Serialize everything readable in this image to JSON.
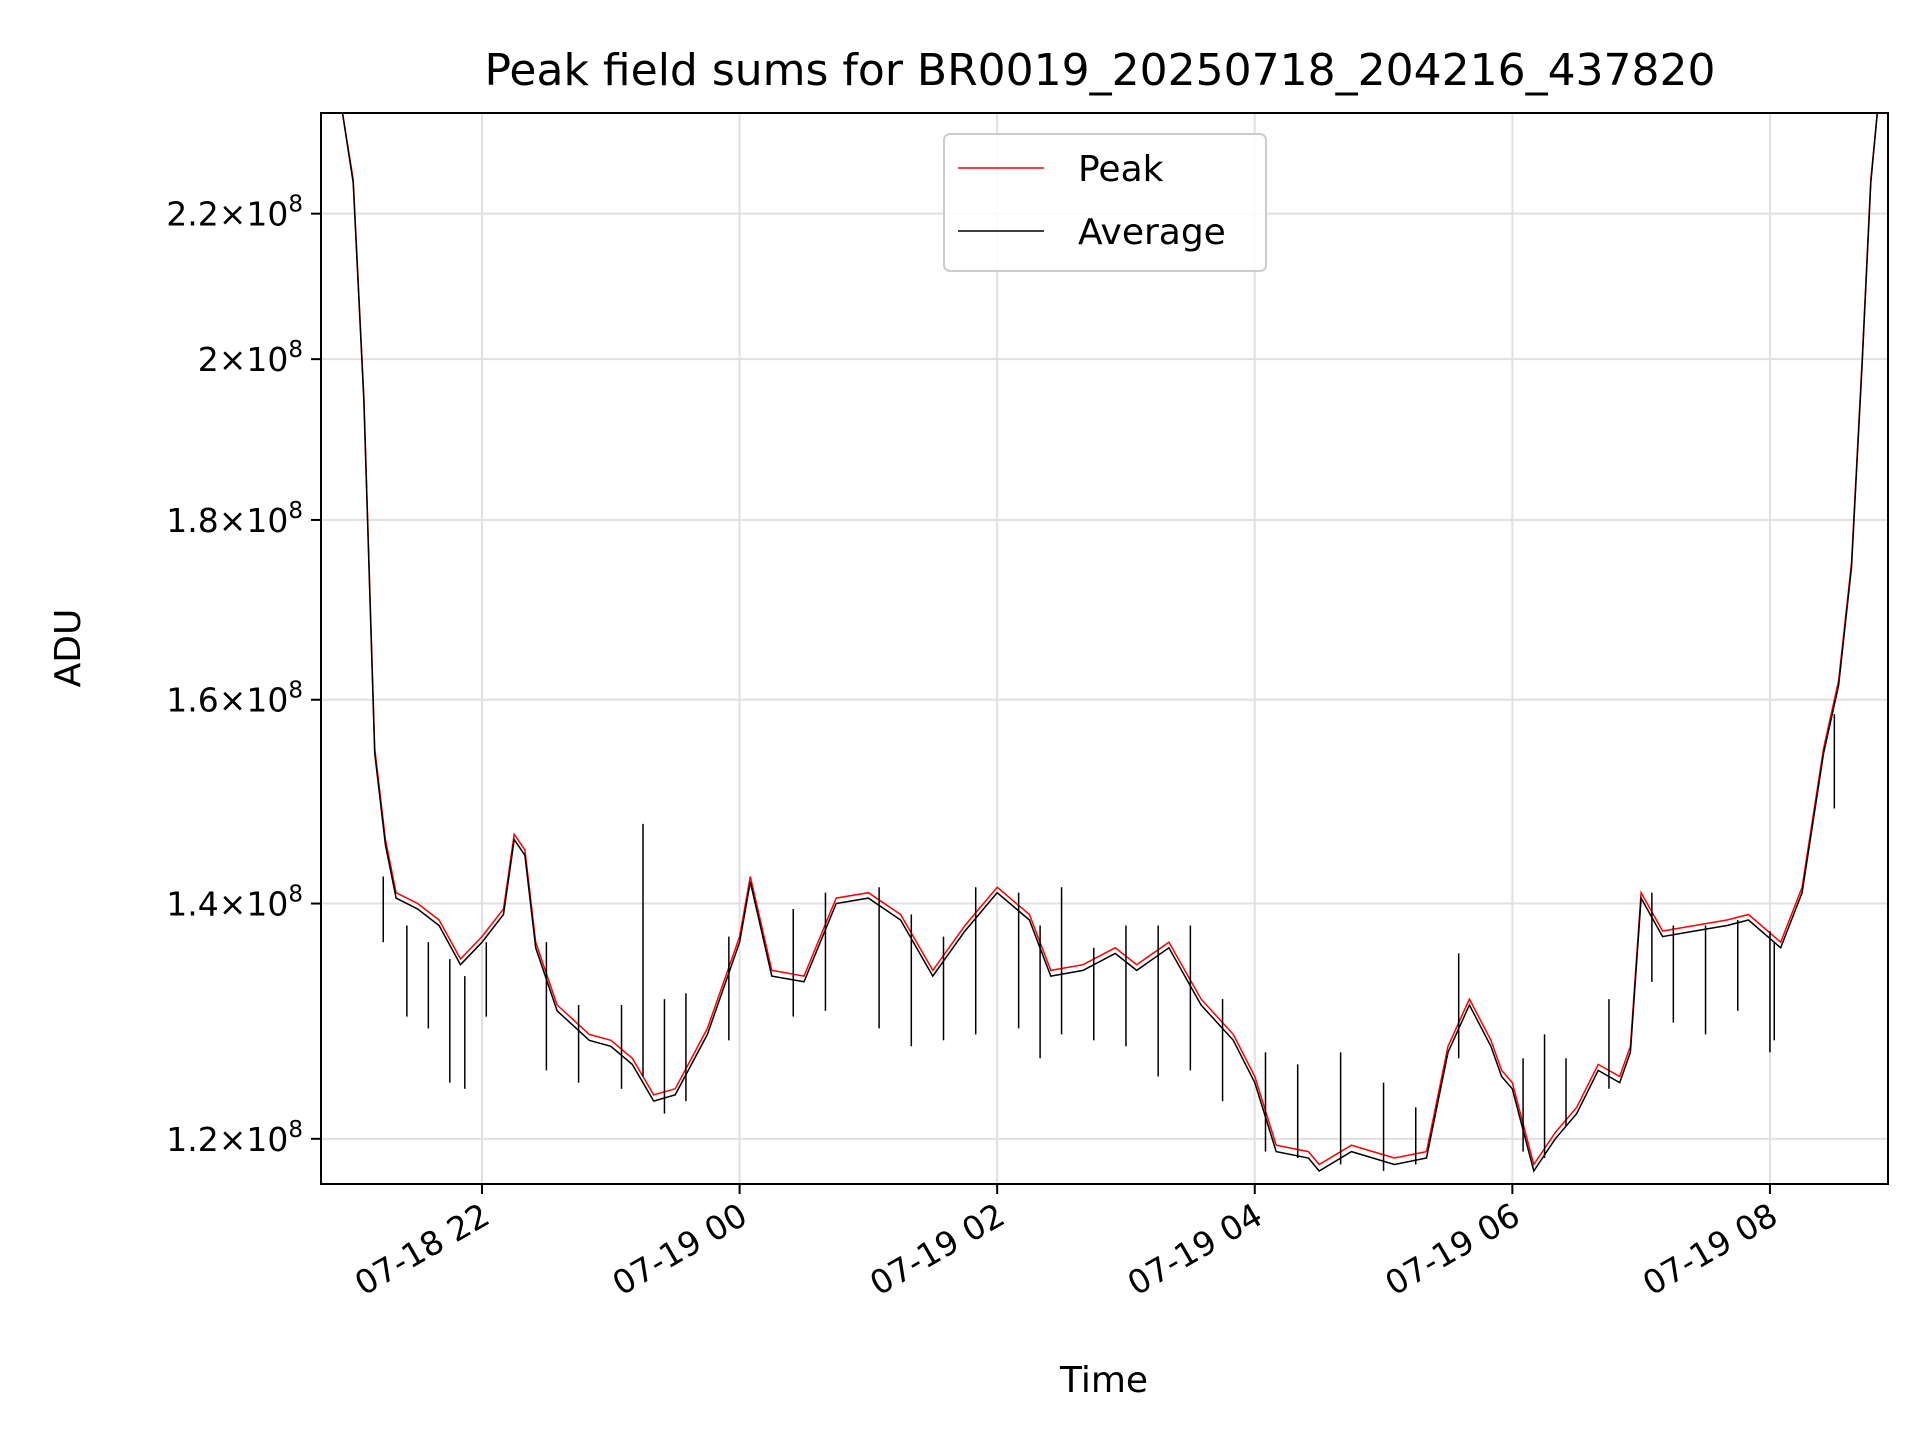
{
  "chart_data": {
    "type": "line",
    "title": "Peak field sums for BR0019_20250718_204216_437820",
    "xlabel": "Time",
    "ylabel": "ADU",
    "y_scale": "log",
    "x_range": [
      "2025-07-18 20:45",
      "2025-07-19 08:55"
    ],
    "ylim": [
      116500000,
      235000000
    ],
    "x_ticks": [
      "2025-07-18 22:00",
      "2025-07-19 00:00",
      "2025-07-19 02:00",
      "2025-07-19 04:00",
      "2025-07-19 06:00",
      "2025-07-19 08:00"
    ],
    "x_tick_labels": [
      "07-18 22",
      "07-19 00",
      "07-19 02",
      "07-19 04",
      "07-19 06",
      "07-19 08"
    ],
    "y_ticks": [
      120000000,
      140000000,
      160000000,
      180000000,
      200000000,
      220000000
    ],
    "y_tick_labels": [
      {
        "mant": "1.2",
        "exp": "8"
      },
      {
        "mant": "1.4",
        "exp": "8"
      },
      {
        "mant": "1.6",
        "exp": "8"
      },
      {
        "mant": "1.8",
        "exp": "8"
      },
      {
        "mant": "2",
        "exp": "8"
      },
      {
        "mant": "2.2",
        "exp": "8"
      }
    ],
    "grid": true,
    "legend_position": "top-center",
    "series": [
      {
        "name": "Peak",
        "color": "#ff0000",
        "points": [
          [
            "2025-07-18 20:45",
            235000000
          ],
          [
            "2025-07-18 20:55",
            235000000
          ],
          [
            "2025-07-18 21:00",
            225000000
          ],
          [
            "2025-07-18 21:05",
            195000000
          ],
          [
            "2025-07-18 21:10",
            155000000
          ],
          [
            "2025-07-18 21:15",
            146000000
          ],
          [
            "2025-07-18 21:20",
            141000000
          ],
          [
            "2025-07-18 21:30",
            140000000
          ],
          [
            "2025-07-18 21:40",
            138500000
          ],
          [
            "2025-07-18 21:50",
            135000000
          ],
          [
            "2025-07-18 22:00",
            137000000
          ],
          [
            "2025-07-18 22:10",
            139500000
          ],
          [
            "2025-07-18 22:15",
            146500000
          ],
          [
            "2025-07-18 22:20",
            145000000
          ],
          [
            "2025-07-18 22:25",
            136500000
          ],
          [
            "2025-07-18 22:35",
            131000000
          ],
          [
            "2025-07-18 22:50",
            128500000
          ],
          [
            "2025-07-18 23:00",
            128000000
          ],
          [
            "2025-07-18 23:10",
            126500000
          ],
          [
            "2025-07-18 23:20",
            123500000
          ],
          [
            "2025-07-18 23:30",
            124000000
          ],
          [
            "2025-07-18 23:45",
            129000000
          ],
          [
            "2025-07-19 00:00",
            137000000
          ],
          [
            "2025-07-19 00:05",
            142500000
          ],
          [
            "2025-07-19 00:15",
            134000000
          ],
          [
            "2025-07-19 00:30",
            133500000
          ],
          [
            "2025-07-19 00:45",
            140500000
          ],
          [
            "2025-07-19 01:00",
            141000000
          ],
          [
            "2025-07-19 01:15",
            139000000
          ],
          [
            "2025-07-19 01:30",
            134000000
          ],
          [
            "2025-07-19 01:45",
            138000000
          ],
          [
            "2025-07-19 02:00",
            141500000
          ],
          [
            "2025-07-19 02:15",
            139000000
          ],
          [
            "2025-07-19 02:25",
            134000000
          ],
          [
            "2025-07-19 02:40",
            134500000
          ],
          [
            "2025-07-19 02:55",
            136000000
          ],
          [
            "2025-07-19 03:05",
            134500000
          ],
          [
            "2025-07-19 03:20",
            136500000
          ],
          [
            "2025-07-19 03:35",
            131500000
          ],
          [
            "2025-07-19 03:50",
            128500000
          ],
          [
            "2025-07-19 04:00",
            125000000
          ],
          [
            "2025-07-19 04:10",
            119500000
          ],
          [
            "2025-07-19 04:25",
            119000000
          ],
          [
            "2025-07-19 04:30",
            118000000
          ],
          [
            "2025-07-19 04:45",
            119500000
          ],
          [
            "2025-07-19 04:55",
            119000000
          ],
          [
            "2025-07-19 05:05",
            118500000
          ],
          [
            "2025-07-19 05:20",
            119000000
          ],
          [
            "2025-07-19 05:30",
            127500000
          ],
          [
            "2025-07-19 05:40",
            131500000
          ],
          [
            "2025-07-19 05:50",
            128000000
          ],
          [
            "2025-07-19 05:55",
            125500000
          ],
          [
            "2025-07-19 06:00",
            124500000
          ],
          [
            "2025-07-19 06:10",
            118000000
          ],
          [
            "2025-07-19 06:20",
            120500000
          ],
          [
            "2025-07-19 06:30",
            122500000
          ],
          [
            "2025-07-19 06:40",
            126000000
          ],
          [
            "2025-07-19 06:50",
            125000000
          ],
          [
            "2025-07-19 06:55",
            127500000
          ],
          [
            "2025-07-19 07:00",
            141000000
          ],
          [
            "2025-07-19 07:10",
            137500000
          ],
          [
            "2025-07-19 07:25",
            138000000
          ],
          [
            "2025-07-19 07:40",
            138500000
          ],
          [
            "2025-07-19 07:50",
            139000000
          ],
          [
            "2025-07-19 08:05",
            136500000
          ],
          [
            "2025-07-19 08:15",
            141500000
          ],
          [
            "2025-07-19 08:25",
            155000000
          ],
          [
            "2025-07-19 08:32",
            162000000
          ],
          [
            "2025-07-19 08:38",
            175000000
          ],
          [
            "2025-07-19 08:43",
            200000000
          ],
          [
            "2025-07-19 08:47",
            225000000
          ],
          [
            "2025-07-19 08:50",
            235000000
          ],
          [
            "2025-07-19 08:55",
            235000000
          ]
        ]
      },
      {
        "name": "Average",
        "color": "#000000",
        "points": [
          [
            "2025-07-18 20:45",
            235000000
          ],
          [
            "2025-07-18 20:55",
            235000000
          ],
          [
            "2025-07-18 21:00",
            224500000
          ],
          [
            "2025-07-18 21:05",
            194500000
          ],
          [
            "2025-07-18 21:10",
            154500000
          ],
          [
            "2025-07-18 21:15",
            145500000
          ],
          [
            "2025-07-18 21:20",
            140500000
          ],
          [
            "2025-07-18 21:30",
            139500000
          ],
          [
            "2025-07-18 21:40",
            138000000
          ],
          [
            "2025-07-18 21:50",
            134500000
          ],
          [
            "2025-07-18 22:00",
            136500000
          ],
          [
            "2025-07-18 22:10",
            139000000
          ],
          [
            "2025-07-18 22:15",
            146000000
          ],
          [
            "2025-07-18 22:20",
            144500000
          ],
          [
            "2025-07-18 22:25",
            136000000
          ],
          [
            "2025-07-18 22:35",
            130500000
          ],
          [
            "2025-07-18 22:50",
            128000000
          ],
          [
            "2025-07-18 23:00",
            127500000
          ],
          [
            "2025-07-18 23:10",
            126000000
          ],
          [
            "2025-07-18 23:20",
            123000000
          ],
          [
            "2025-07-18 23:30",
            123500000
          ],
          [
            "2025-07-18 23:45",
            128500000
          ],
          [
            "2025-07-19 00:00",
            136500000
          ],
          [
            "2025-07-19 00:05",
            142000000
          ],
          [
            "2025-07-19 00:15",
            133500000
          ],
          [
            "2025-07-19 00:30",
            133000000
          ],
          [
            "2025-07-19 00:45",
            140000000
          ],
          [
            "2025-07-19 01:00",
            140500000
          ],
          [
            "2025-07-19 01:15",
            138500000
          ],
          [
            "2025-07-19 01:30",
            133500000
          ],
          [
            "2025-07-19 01:45",
            137500000
          ],
          [
            "2025-07-19 02:00",
            141000000
          ],
          [
            "2025-07-19 02:15",
            138500000
          ],
          [
            "2025-07-19 02:25",
            133500000
          ],
          [
            "2025-07-19 02:40",
            134000000
          ],
          [
            "2025-07-19 02:55",
            135500000
          ],
          [
            "2025-07-19 03:05",
            134000000
          ],
          [
            "2025-07-19 03:20",
            136000000
          ],
          [
            "2025-07-19 03:35",
            131000000
          ],
          [
            "2025-07-19 03:50",
            128000000
          ],
          [
            "2025-07-19 04:00",
            124500000
          ],
          [
            "2025-07-19 04:10",
            119000000
          ],
          [
            "2025-07-19 04:25",
            118500000
          ],
          [
            "2025-07-19 04:30",
            117500000
          ],
          [
            "2025-07-19 04:45",
            119000000
          ],
          [
            "2025-07-19 04:55",
            118500000
          ],
          [
            "2025-07-19 05:05",
            118000000
          ],
          [
            "2025-07-19 05:20",
            118500000
          ],
          [
            "2025-07-19 05:30",
            127000000
          ],
          [
            "2025-07-19 05:40",
            131000000
          ],
          [
            "2025-07-19 05:50",
            127500000
          ],
          [
            "2025-07-19 05:55",
            125000000
          ],
          [
            "2025-07-19 06:00",
            124000000
          ],
          [
            "2025-07-19 06:10",
            117500000
          ],
          [
            "2025-07-19 06:20",
            120000000
          ],
          [
            "2025-07-19 06:30",
            122000000
          ],
          [
            "2025-07-19 06:40",
            125500000
          ],
          [
            "2025-07-19 06:50",
            124500000
          ],
          [
            "2025-07-19 06:55",
            127000000
          ],
          [
            "2025-07-19 07:00",
            140500000
          ],
          [
            "2025-07-19 07:10",
            137000000
          ],
          [
            "2025-07-19 07:25",
            137500000
          ],
          [
            "2025-07-19 07:40",
            138000000
          ],
          [
            "2025-07-19 07:50",
            138500000
          ],
          [
            "2025-07-19 08:05",
            136000000
          ],
          [
            "2025-07-19 08:15",
            141000000
          ],
          [
            "2025-07-19 08:25",
            154500000
          ],
          [
            "2025-07-19 08:32",
            161500000
          ],
          [
            "2025-07-19 08:38",
            174500000
          ],
          [
            "2025-07-19 08:43",
            199500000
          ],
          [
            "2025-07-19 08:47",
            224500000
          ],
          [
            "2025-07-19 08:50",
            235000000
          ],
          [
            "2025-07-19 08:55",
            235000000
          ]
        ]
      }
    ],
    "spikes": [
      [
        "2025-07-18 21:14",
        136500000,
        142500000
      ],
      [
        "2025-07-18 21:25",
        130000000,
        138000000
      ],
      [
        "2025-07-18 21:35",
        129000000,
        136500000
      ],
      [
        "2025-07-18 21:45",
        124500000,
        135000000
      ],
      [
        "2025-07-18 21:52",
        124000000,
        133500000
      ],
      [
        "2025-07-18 22:02",
        130000000,
        136500000
      ],
      [
        "2025-07-18 22:30",
        125500000,
        136500000
      ],
      [
        "2025-07-18 22:45",
        124500000,
        131000000
      ],
      [
        "2025-07-18 23:05",
        124000000,
        131000000
      ],
      [
        "2025-07-18 23:15",
        125000000,
        147500000
      ],
      [
        "2025-07-18 23:25",
        122000000,
        131500000
      ],
      [
        "2025-07-18 23:35",
        123000000,
        132000000
      ],
      [
        "2025-07-18 23:55",
        128000000,
        137000000
      ],
      [
        "2025-07-19 00:25",
        130000000,
        139500000
      ],
      [
        "2025-07-19 00:40",
        130500000,
        141000000
      ],
      [
        "2025-07-19 01:05",
        129000000,
        141500000
      ],
      [
        "2025-07-19 01:20",
        127500000,
        139000000
      ],
      [
        "2025-07-19 01:35",
        128000000,
        137000000
      ],
      [
        "2025-07-19 01:50",
        128500000,
        141500000
      ],
      [
        "2025-07-19 02:10",
        129000000,
        141000000
      ],
      [
        "2025-07-19 02:20",
        126500000,
        138000000
      ],
      [
        "2025-07-19 02:30",
        128500000,
        141500000
      ],
      [
        "2025-07-19 02:45",
        128000000,
        136000000
      ],
      [
        "2025-07-19 03:00",
        127500000,
        138000000
      ],
      [
        "2025-07-19 03:15",
        125000000,
        138000000
      ],
      [
        "2025-07-19 03:30",
        125500000,
        138000000
      ],
      [
        "2025-07-19 03:45",
        123000000,
        131500000
      ],
      [
        "2025-07-19 04:05",
        119000000,
        127000000
      ],
      [
        "2025-07-19 04:20",
        118500000,
        126000000
      ],
      [
        "2025-07-19 04:40",
        118000000,
        127000000
      ],
      [
        "2025-07-19 05:00",
        117500000,
        124500000
      ],
      [
        "2025-07-19 05:15",
        118000000,
        122500000
      ],
      [
        "2025-07-19 05:35",
        126500000,
        135500000
      ],
      [
        "2025-07-19 06:05",
        119000000,
        126500000
      ],
      [
        "2025-07-19 06:15",
        118500000,
        128500000
      ],
      [
        "2025-07-19 06:25",
        121000000,
        126500000
      ],
      [
        "2025-07-19 06:45",
        124000000,
        131500000
      ],
      [
        "2025-07-19 07:05",
        133000000,
        141000000
      ],
      [
        "2025-07-19 07:15",
        129500000,
        138000000
      ],
      [
        "2025-07-19 07:30",
        128500000,
        138000000
      ],
      [
        "2025-07-19 07:45",
        130500000,
        138500000
      ],
      [
        "2025-07-19 08:00",
        127000000,
        137500000
      ],
      [
        "2025-07-19 08:02",
        128000000,
        136500000
      ],
      [
        "2025-07-19 08:30",
        149000000,
        158500000
      ]
    ]
  }
}
